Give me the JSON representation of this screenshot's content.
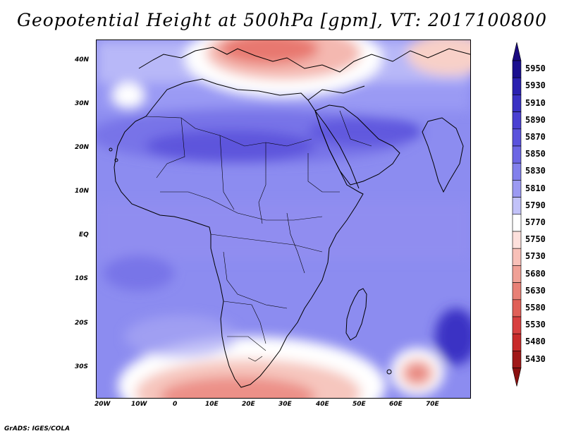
{
  "title": "Geopotential Height at 500hPa [gpm], VT: 2017100800",
  "footer": "GrADS: IGES/COLA",
  "lat_labels": [
    "40N",
    "30N",
    "20N",
    "10N",
    "EQ",
    "10S",
    "20S",
    "30S"
  ],
  "lon_labels": [
    "20W",
    "10W",
    "0",
    "10E",
    "20E",
    "30E",
    "40E",
    "50E",
    "60E",
    "70E"
  ],
  "colorbar": {
    "levels": [
      "5950",
      "5930",
      "5910",
      "5890",
      "5870",
      "5850",
      "5830",
      "5810",
      "5790",
      "5770",
      "5750",
      "5730",
      "5680",
      "5630",
      "5580",
      "5530",
      "5480",
      "5430"
    ],
    "colors": [
      "#1a0f8f",
      "#2a20b0",
      "#3a31c4",
      "#4a40d2",
      "#5a52dc",
      "#6c66e4",
      "#8280ec",
      "#9c9af2",
      "#c2c2f8",
      "#ffffff",
      "#fde0dc",
      "#f8c0b8",
      "#f0a096",
      "#e88076",
      "#e06058",
      "#d84040",
      "#c82a2a",
      "#a01818"
    ],
    "top_color": "#1a0a80",
    "bottom_color": "#8a1010"
  }
}
